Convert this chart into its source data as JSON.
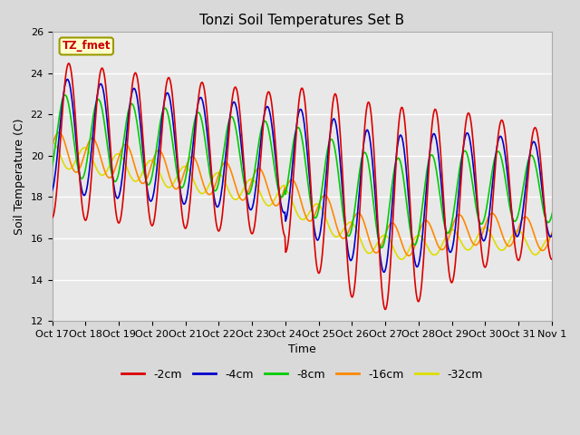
{
  "title": "Tonzi Soil Temperatures Set B",
  "xlabel": "Time",
  "ylabel": "Soil Temperature (C)",
  "ylim": [
    12,
    26
  ],
  "annotation_text": "TZ_fmet",
  "series_colors": [
    "#dd0000",
    "#0000cc",
    "#00cc00",
    "#ff8800",
    "#dddd00"
  ],
  "series_labels": [
    "-2cm",
    "-4cm",
    "-8cm",
    "-16cm",
    "-32cm"
  ],
  "xtick_labels": [
    "Oct 17",
    "Oct 18",
    "Oct 19",
    "Oct 20",
    "Oct 21",
    "Oct 22",
    "Oct 23",
    "Oct 24",
    "Oct 25",
    "Oct 26",
    "Oct 27",
    "Oct 28",
    "Oct 29",
    "Oct 30",
    "Oct 31",
    "Nov 1"
  ],
  "ytick_values": [
    12,
    14,
    16,
    18,
    20,
    22,
    24,
    26
  ],
  "background_color": "#d9d9d9",
  "plot_bg_color": "#e8e8e8",
  "grid_color": "#ffffff",
  "title_fontsize": 11,
  "axis_label_fontsize": 9,
  "tick_fontsize": 8,
  "legend_fontsize": 9,
  "linewidth": 1.2
}
